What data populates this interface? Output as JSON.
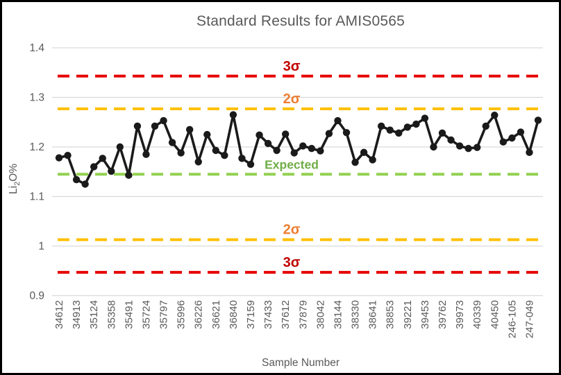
{
  "chart_data": {
    "type": "line",
    "title": "Standard Results for AMIS0565",
    "xlabel": "Sample Number",
    "ylabel": {
      "prefix": "Li",
      "sub": "2",
      "suffix": "O%"
    },
    "ylim": [
      0.9,
      1.4
    ],
    "yticks": [
      {
        "value": 1.4,
        "label": "1.4"
      },
      {
        "value": 1.3,
        "label": "1.3"
      },
      {
        "value": 1.2,
        "label": "1.2"
      },
      {
        "value": 1.1,
        "label": "1.1"
      },
      {
        "value": 1.0,
        "label": "1"
      },
      {
        "value": 0.9,
        "label": "0.9"
      }
    ],
    "grid": true,
    "legend": false,
    "categories": [
      "34612",
      "34913",
      "35124",
      "35358",
      "35491",
      "35724",
      "35797",
      "35996",
      "36226",
      "36621",
      "36840",
      "37159",
      "37433",
      "37612",
      "37879",
      "38042",
      "38144",
      "38330",
      "38641",
      "38853",
      "39221",
      "39453",
      "39762",
      "39973",
      "40339",
      "40450",
      "246-105",
      "247-049"
    ],
    "category_note": "x labels shown for every other data point",
    "values": [
      1.178,
      1.183,
      1.134,
      1.125,
      1.16,
      1.177,
      1.151,
      1.2,
      1.143,
      1.242,
      1.185,
      1.242,
      1.253,
      1.209,
      1.188,
      1.235,
      1.17,
      1.225,
      1.193,
      1.183,
      1.265,
      1.177,
      1.165,
      1.224,
      1.207,
      1.193,
      1.226,
      1.188,
      1.202,
      1.197,
      1.192,
      1.227,
      1.253,
      1.229,
      1.169,
      1.189,
      1.174,
      1.242,
      1.234,
      1.228,
      1.24,
      1.246,
      1.258,
      1.2,
      1.228,
      1.214,
      1.202,
      1.197,
      1.199,
      1.242,
      1.264,
      1.21,
      1.218,
      1.23,
      1.189,
      1.254
    ],
    "series_color": "#1a1a1a",
    "reference_lines": [
      {
        "id": "sigma3-upper",
        "label": "3σ",
        "value": 1.343,
        "line_color": "#e60000",
        "label_color": "#c00000"
      },
      {
        "id": "sigma2-upper",
        "label": "2σ",
        "value": 1.277,
        "line_color": "#ffc000",
        "label_color": "#ed7d31"
      },
      {
        "id": "expected",
        "label": "Expected",
        "value": 1.145,
        "line_color": "#92d050",
        "label_color": "#70ad47"
      },
      {
        "id": "sigma2-lower",
        "label": "2σ",
        "value": 1.013,
        "line_color": "#ffc000",
        "label_color": "#ed7d31"
      },
      {
        "id": "sigma3-lower",
        "label": "3σ",
        "value": 0.947,
        "line_color": "#e60000",
        "label_color": "#c00000"
      }
    ],
    "colors": {
      "title_text": "#595959",
      "axis_text": "#595959",
      "gridline": "#d9d9d9"
    }
  }
}
